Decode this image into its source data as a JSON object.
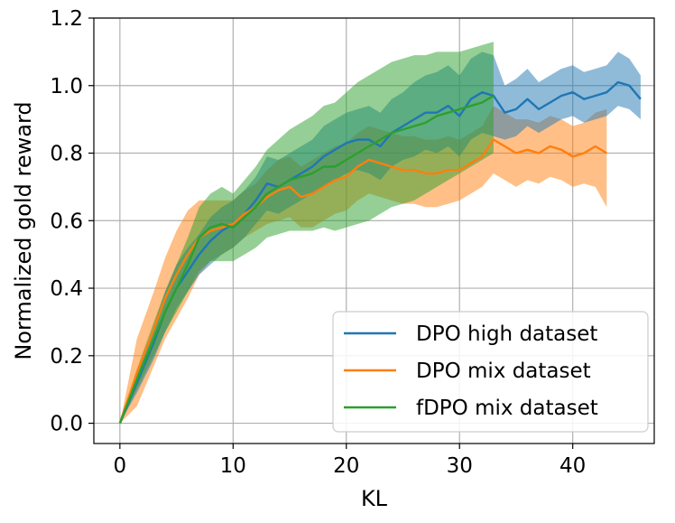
{
  "chart_data": {
    "type": "line",
    "xlabel": "KL",
    "ylabel": "Normalized gold reward",
    "xlim": [
      -2.3,
      47.2
    ],
    "ylim": [
      -0.06,
      1.2
    ],
    "xticks": [
      0,
      10,
      20,
      30,
      40
    ],
    "yticks": [
      0.0,
      0.2,
      0.4,
      0.6,
      0.8,
      1.0,
      1.2
    ],
    "grid": true,
    "legend_position": "bottom-right",
    "series": [
      {
        "name": "DPO high dataset",
        "color": "#1f77b4",
        "x": [
          0,
          1.5,
          3,
          4,
          5,
          6,
          7,
          8,
          9,
          10,
          11,
          12,
          13,
          14,
          15,
          16,
          17,
          18,
          19,
          20,
          21,
          22,
          23,
          24,
          25,
          26,
          27,
          28,
          29,
          30,
          31,
          32,
          33,
          34,
          35,
          36,
          37,
          38,
          39,
          40,
          41,
          42,
          43,
          44,
          45,
          46
        ],
        "y": [
          0.0,
          0.12,
          0.24,
          0.33,
          0.4,
          0.45,
          0.5,
          0.54,
          0.57,
          0.59,
          0.62,
          0.66,
          0.71,
          0.7,
          0.72,
          0.74,
          0.76,
          0.79,
          0.81,
          0.83,
          0.84,
          0.84,
          0.82,
          0.86,
          0.88,
          0.9,
          0.92,
          0.92,
          0.94,
          0.91,
          0.96,
          0.98,
          0.97,
          0.92,
          0.93,
          0.96,
          0.93,
          0.95,
          0.97,
          0.98,
          0.96,
          0.97,
          0.98,
          1.01,
          1.0,
          0.96
        ],
        "lower": [
          0.0,
          0.09,
          0.19,
          0.27,
          0.34,
          0.39,
          0.44,
          0.47,
          0.5,
          0.52,
          0.55,
          0.59,
          0.63,
          0.62,
          0.64,
          0.66,
          0.68,
          0.7,
          0.72,
          0.74,
          0.75,
          0.74,
          0.72,
          0.76,
          0.78,
          0.79,
          0.81,
          0.8,
          0.82,
          0.79,
          0.84,
          0.86,
          0.85,
          0.84,
          0.85,
          0.88,
          0.86,
          0.88,
          0.9,
          0.91,
          0.89,
          0.9,
          0.91,
          0.94,
          0.93,
          0.9
        ],
        "upper": [
          0.0,
          0.15,
          0.29,
          0.39,
          0.47,
          0.52,
          0.56,
          0.61,
          0.64,
          0.66,
          0.69,
          0.73,
          0.79,
          0.78,
          0.8,
          0.82,
          0.84,
          0.88,
          0.9,
          0.92,
          0.93,
          0.94,
          0.92,
          0.96,
          0.98,
          1.01,
          1.03,
          1.04,
          1.06,
          1.03,
          1.08,
          1.1,
          1.09,
          1.0,
          1.02,
          1.05,
          1.01,
          1.03,
          1.05,
          1.06,
          1.04,
          1.05,
          1.06,
          1.1,
          1.08,
          1.03
        ]
      },
      {
        "name": "DPO mix dataset",
        "color": "#ff7f0e",
        "x": [
          0,
          1.5,
          3,
          4,
          5,
          6,
          7,
          8,
          9,
          10,
          11,
          12,
          13,
          14,
          15,
          16,
          17,
          18,
          19,
          20,
          21,
          22,
          23,
          24,
          25,
          26,
          27,
          28,
          29,
          30,
          31,
          32,
          33,
          34,
          35,
          36,
          37,
          38,
          39,
          40,
          41,
          42,
          43
        ],
        "y": [
          0.0,
          0.15,
          0.28,
          0.37,
          0.44,
          0.5,
          0.55,
          0.57,
          0.58,
          0.59,
          0.62,
          0.64,
          0.67,
          0.69,
          0.7,
          0.67,
          0.68,
          0.7,
          0.72,
          0.73,
          0.76,
          0.78,
          0.77,
          0.76,
          0.75,
          0.75,
          0.74,
          0.74,
          0.75,
          0.75,
          0.77,
          0.79,
          0.84,
          0.82,
          0.8,
          0.81,
          0.8,
          0.82,
          0.81,
          0.79,
          0.8,
          0.82,
          0.8
        ],
        "lower": [
          0.0,
          0.05,
          0.17,
          0.25,
          0.31,
          0.37,
          0.44,
          0.48,
          0.5,
          0.52,
          0.55,
          0.57,
          0.59,
          0.6,
          0.61,
          0.58,
          0.58,
          0.6,
          0.62,
          0.63,
          0.66,
          0.68,
          0.67,
          0.66,
          0.65,
          0.65,
          0.64,
          0.64,
          0.65,
          0.66,
          0.68,
          0.7,
          0.74,
          0.72,
          0.7,
          0.72,
          0.71,
          0.73,
          0.72,
          0.7,
          0.71,
          0.7,
          0.64
        ],
        "upper": [
          0.0,
          0.25,
          0.39,
          0.49,
          0.57,
          0.63,
          0.66,
          0.66,
          0.66,
          0.66,
          0.69,
          0.71,
          0.75,
          0.78,
          0.79,
          0.76,
          0.78,
          0.8,
          0.82,
          0.83,
          0.86,
          0.88,
          0.87,
          0.86,
          0.85,
          0.85,
          0.84,
          0.84,
          0.85,
          0.84,
          0.86,
          0.88,
          0.94,
          0.92,
          0.9,
          0.9,
          0.89,
          0.91,
          0.9,
          0.88,
          0.89,
          0.92,
          0.93
        ]
      },
      {
        "name": "fDPO mix dataset",
        "color": "#2ca02c",
        "x": [
          0,
          1.5,
          3,
          4,
          5,
          6,
          7,
          8,
          9,
          10,
          11,
          12,
          13,
          14,
          15,
          16,
          17,
          18,
          19,
          20,
          21,
          22,
          23,
          24,
          25,
          26,
          27,
          28,
          29,
          30,
          31,
          32,
          33
        ],
        "y": [
          0.0,
          0.13,
          0.25,
          0.33,
          0.4,
          0.47,
          0.55,
          0.58,
          0.59,
          0.58,
          0.61,
          0.64,
          0.68,
          0.7,
          0.72,
          0.73,
          0.74,
          0.76,
          0.76,
          0.78,
          0.8,
          0.82,
          0.84,
          0.86,
          0.87,
          0.88,
          0.89,
          0.91,
          0.92,
          0.93,
          0.94,
          0.95,
          0.97
        ],
        "lower": [
          0.0,
          0.1,
          0.2,
          0.27,
          0.33,
          0.39,
          0.45,
          0.48,
          0.48,
          0.48,
          0.5,
          0.52,
          0.55,
          0.56,
          0.57,
          0.57,
          0.57,
          0.58,
          0.57,
          0.58,
          0.59,
          0.6,
          0.62,
          0.64,
          0.65,
          0.66,
          0.68,
          0.7,
          0.72,
          0.74,
          0.76,
          0.78,
          0.8
        ],
        "upper": [
          0.0,
          0.16,
          0.3,
          0.39,
          0.47,
          0.55,
          0.64,
          0.68,
          0.7,
          0.68,
          0.72,
          0.76,
          0.81,
          0.84,
          0.87,
          0.89,
          0.91,
          0.94,
          0.95,
          0.98,
          1.01,
          1.03,
          1.05,
          1.07,
          1.08,
          1.09,
          1.09,
          1.1,
          1.1,
          1.1,
          1.11,
          1.12,
          1.13
        ]
      }
    ]
  }
}
